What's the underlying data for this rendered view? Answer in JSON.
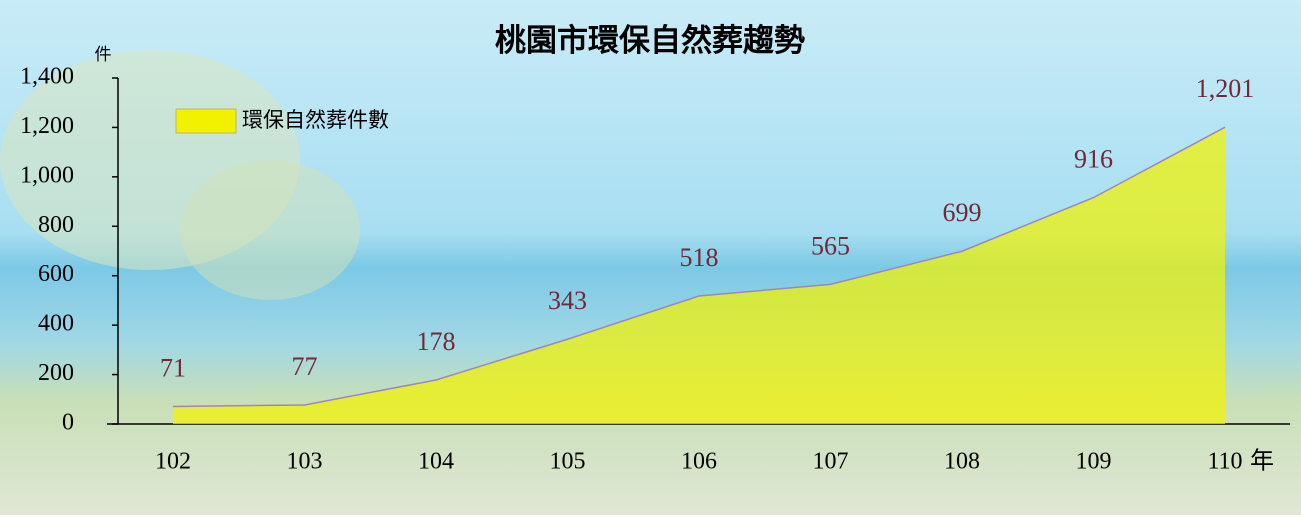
{
  "chart_data": {
    "type": "area",
    "title": "桃園市環保自然葬趨勢",
    "y_label": "件",
    "x_label": "年",
    "categories": [
      "102",
      "103",
      "104",
      "105",
      "106",
      "107",
      "108",
      "109",
      "110"
    ],
    "series": [
      {
        "name": "環保自然葬件數",
        "color": "#f2f200",
        "stroke": "#9b86c4",
        "values": [
          71,
          77,
          178,
          343,
          518,
          565,
          699,
          916,
          1201
        ],
        "value_labels": [
          "71",
          "77",
          "178",
          "343",
          "518",
          "565",
          "699",
          "916",
          "1,201"
        ]
      }
    ],
    "ylim": [
      0,
      1400
    ],
    "yticks": [
      0,
      200,
      400,
      600,
      800,
      {
        "value": 1000,
        "label": "1,000"
      },
      {
        "value": 1200,
        "label": "1,200"
      },
      {
        "value": 1400,
        "label": "1,400"
      }
    ],
    "grid": false,
    "legend": "top-left"
  }
}
